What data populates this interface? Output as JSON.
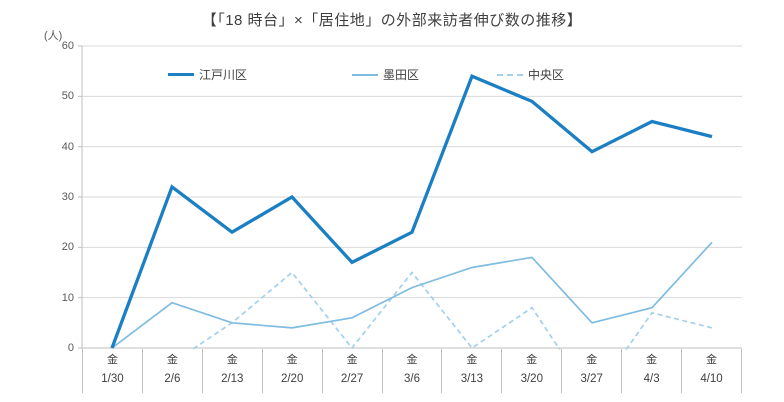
{
  "colors": {
    "gridline": "#d9d9d9",
    "axis_line": "#bfbfbf",
    "tick_text": "#595959",
    "label_text": "#404040",
    "series_edogawa": "#1b7fc4",
    "series_sumida": "#7fbce1",
    "series_chuo": "#a3d0ec"
  },
  "chart_data": {
    "type": "line",
    "title": "【「18 時台」×「居住地」の外部来訪者伸び数の推移】",
    "legend_position": "top",
    "grid": "on",
    "y_axis": {
      "unit_label": "(人)",
      "min": 0,
      "max": 60,
      "tick_interval": 10,
      "ticks": [
        0,
        10,
        20,
        30,
        40,
        50,
        60
      ]
    },
    "x_axis": {
      "day_label": "金",
      "categories": [
        "1/30",
        "2/6",
        "2/13",
        "2/20",
        "2/27",
        "3/6",
        "3/13",
        "3/20",
        "3/27",
        "4/3",
        "4/10"
      ]
    },
    "series": [
      {
        "name": "江戸川区",
        "color": "#1b7fc4",
        "style": "solid",
        "line_width": 3.3,
        "values": [
          0,
          32,
          23,
          30,
          17,
          23,
          54,
          49,
          39,
          45,
          42
        ]
      },
      {
        "name": "墨田区",
        "color": "#7fbce1",
        "style": "solid",
        "line_width": 1.7,
        "values": [
          0,
          9,
          5,
          4,
          6,
          12,
          16,
          18,
          5,
          8,
          21
        ]
      },
      {
        "name": "中央区",
        "color": "#a3d0ec",
        "style": "dashed",
        "line_width": 1.7,
        "values": [
          null,
          -3,
          5,
          15,
          0,
          15,
          0,
          8,
          -10,
          7,
          4
        ]
      }
    ]
  }
}
